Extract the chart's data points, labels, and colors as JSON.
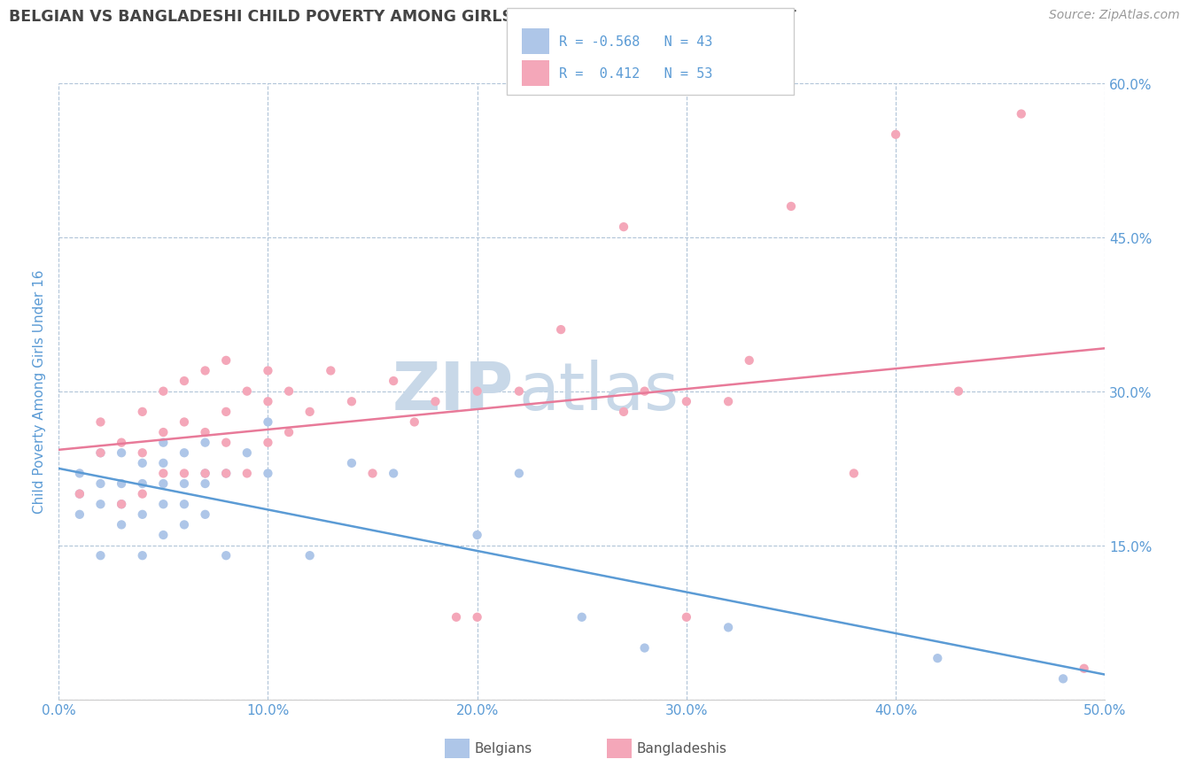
{
  "title": "BELGIAN VS BANGLADESHI CHILD POVERTY AMONG GIRLS UNDER 16 CORRELATION CHART",
  "source": "Source: ZipAtlas.com",
  "ylabel": "Child Poverty Among Girls Under 16",
  "xlim": [
    0.0,
    0.5
  ],
  "ylim": [
    0.0,
    0.6
  ],
  "xticks": [
    0.0,
    0.1,
    0.2,
    0.3,
    0.4,
    0.5
  ],
  "yticks": [
    0.0,
    0.15,
    0.3,
    0.45,
    0.6
  ],
  "ytick_labels_right": [
    "",
    "15.0%",
    "30.0%",
    "45.0%",
    "60.0%"
  ],
  "xtick_labels": [
    "0.0%",
    "10.0%",
    "20.0%",
    "30.0%",
    "40.0%",
    "50.0%"
  ],
  "belgian_color": "#aec6e8",
  "bangladeshi_color": "#f4a7b9",
  "trend_belgian_color": "#5b9bd5",
  "trend_bangladeshi_color": "#e87a99",
  "belgian_R": -0.568,
  "belgian_N": 43,
  "bangladeshi_R": 0.412,
  "bangladeshi_N": 53,
  "belgian_scatter_x": [
    0.01,
    0.01,
    0.01,
    0.02,
    0.02,
    0.02,
    0.02,
    0.03,
    0.03,
    0.03,
    0.03,
    0.04,
    0.04,
    0.04,
    0.04,
    0.05,
    0.05,
    0.05,
    0.05,
    0.05,
    0.06,
    0.06,
    0.06,
    0.06,
    0.07,
    0.07,
    0.07,
    0.07,
    0.08,
    0.08,
    0.09,
    0.1,
    0.1,
    0.12,
    0.14,
    0.16,
    0.2,
    0.22,
    0.25,
    0.28,
    0.32,
    0.42,
    0.48
  ],
  "belgian_scatter_y": [
    0.18,
    0.2,
    0.22,
    0.14,
    0.19,
    0.21,
    0.24,
    0.17,
    0.19,
    0.21,
    0.24,
    0.14,
    0.18,
    0.21,
    0.23,
    0.16,
    0.19,
    0.21,
    0.23,
    0.25,
    0.17,
    0.19,
    0.21,
    0.24,
    0.18,
    0.21,
    0.22,
    0.25,
    0.14,
    0.22,
    0.24,
    0.22,
    0.27,
    0.14,
    0.23,
    0.22,
    0.16,
    0.22,
    0.08,
    0.05,
    0.07,
    0.04,
    0.02
  ],
  "bangladeshi_scatter_x": [
    0.01,
    0.02,
    0.02,
    0.03,
    0.03,
    0.04,
    0.04,
    0.04,
    0.05,
    0.05,
    0.05,
    0.06,
    0.06,
    0.06,
    0.07,
    0.07,
    0.07,
    0.08,
    0.08,
    0.08,
    0.08,
    0.09,
    0.09,
    0.1,
    0.1,
    0.1,
    0.11,
    0.11,
    0.12,
    0.13,
    0.14,
    0.15,
    0.16,
    0.17,
    0.18,
    0.19,
    0.2,
    0.2,
    0.22,
    0.24,
    0.27,
    0.27,
    0.28,
    0.3,
    0.3,
    0.32,
    0.33,
    0.35,
    0.38,
    0.4,
    0.43,
    0.46,
    0.49
  ],
  "bangladeshi_scatter_y": [
    0.2,
    0.24,
    0.27,
    0.19,
    0.25,
    0.2,
    0.24,
    0.28,
    0.22,
    0.26,
    0.3,
    0.22,
    0.27,
    0.31,
    0.22,
    0.26,
    0.32,
    0.22,
    0.25,
    0.28,
    0.33,
    0.22,
    0.3,
    0.25,
    0.29,
    0.32,
    0.26,
    0.3,
    0.28,
    0.32,
    0.29,
    0.22,
    0.31,
    0.27,
    0.29,
    0.08,
    0.08,
    0.3,
    0.3,
    0.36,
    0.28,
    0.46,
    0.3,
    0.29,
    0.08,
    0.29,
    0.33,
    0.48,
    0.22,
    0.55,
    0.3,
    0.57,
    0.03
  ],
  "watermark_ZIP": "ZIP",
  "watermark_atlas": "atlas",
  "watermark_color": "#c8d8e8",
  "background_color": "#ffffff",
  "grid_color": "#b0c4d8",
  "title_color": "#444444",
  "axis_label_color": "#5b9bd5",
  "tick_label_color": "#5b9bd5",
  "source_color": "#999999"
}
